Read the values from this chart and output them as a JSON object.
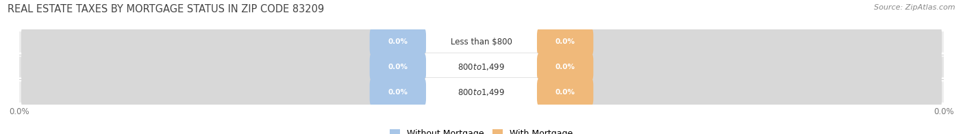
{
  "title": "REAL ESTATE TAXES BY MORTGAGE STATUS IN ZIP CODE 83209",
  "source": "Source: ZipAtlas.com",
  "categories": [
    "Less than $800",
    "$800 to $1,499",
    "$800 to $1,499"
  ],
  "without_mortgage": [
    0.0,
    0.0,
    0.0
  ],
  "with_mortgage": [
    0.0,
    0.0,
    0.0
  ],
  "without_mortgage_color": "#a8c6e8",
  "with_mortgage_color": "#f0b97a",
  "row_bg_colors": [
    "#efefef",
    "#e6e6e6",
    "#efefef"
  ],
  "title_fontsize": 10.5,
  "source_fontsize": 8,
  "legend_fontsize": 9,
  "tick_label": "0.0%",
  "figsize": [
    14.06,
    1.96
  ],
  "dpi": 100
}
